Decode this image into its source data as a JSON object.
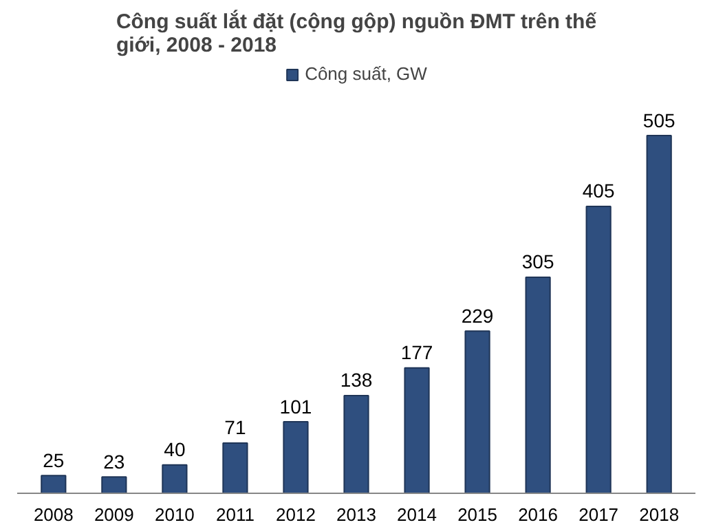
{
  "chart_data": {
    "type": "bar",
    "title": "Công suất lắt đặt (cộng gộp) nguồn ĐMT trên thế giới, 2008 - 2018",
    "categories": [
      "2008",
      "2009",
      "2010",
      "2011",
      "2012",
      "2013",
      "2014",
      "2015",
      "2016",
      "2017",
      "2018"
    ],
    "series": [
      {
        "name": "Công suất, GW",
        "color": "#2f4f7f",
        "values": [
          25,
          23,
          40,
          71,
          101,
          138,
          177,
          229,
          305,
          405,
          505
        ]
      }
    ],
    "data_labels": true,
    "legend": "top",
    "grid": false,
    "tick_labels": "x"
  }
}
